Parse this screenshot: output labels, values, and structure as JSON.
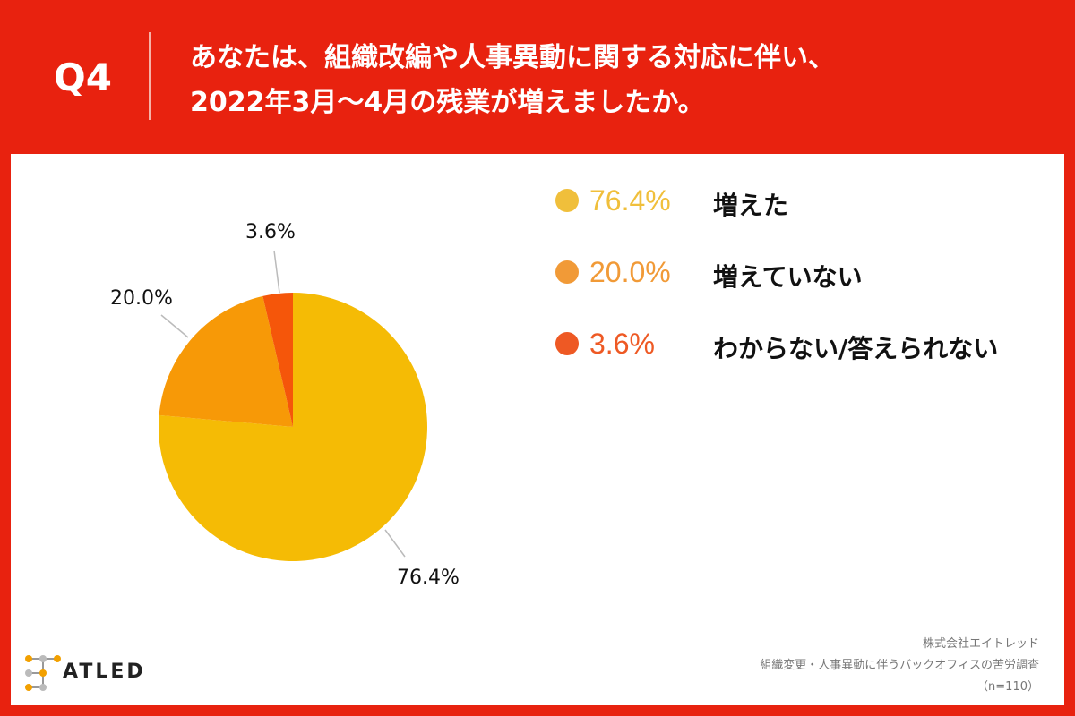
{
  "header": {
    "q_label": "Q4",
    "question_line1": "あなたは、組織改編や人事異動に関する対応に伴い、",
    "question_line2": "2022年3月〜4月の残業が増えましたか。"
  },
  "chart_data": {
    "type": "pie",
    "title": "",
    "slices": [
      {
        "label": "増えた",
        "value": 76.4,
        "display": "76.4%",
        "color": "#f5bb05",
        "legend_color": "#f0bf3b"
      },
      {
        "label": "増えていない",
        "value": 20.0,
        "display": "20.0%",
        "color": "#f79907",
        "legend_color": "#f19a37"
      },
      {
        "label": "わからない/答えられない",
        "value": 3.6,
        "display": "3.6%",
        "color": "#f5560a",
        "legend_color": "#ee5924"
      }
    ]
  },
  "logo": {
    "text": "ATLED"
  },
  "source": {
    "line1": "株式会社エイトレッド",
    "line2": "組織変更・人事異動に伴うバックオフィスの苦労調査",
    "line3": "（n=110）"
  },
  "colors": {
    "background": "#e8220f",
    "panel": "#ffffff"
  }
}
